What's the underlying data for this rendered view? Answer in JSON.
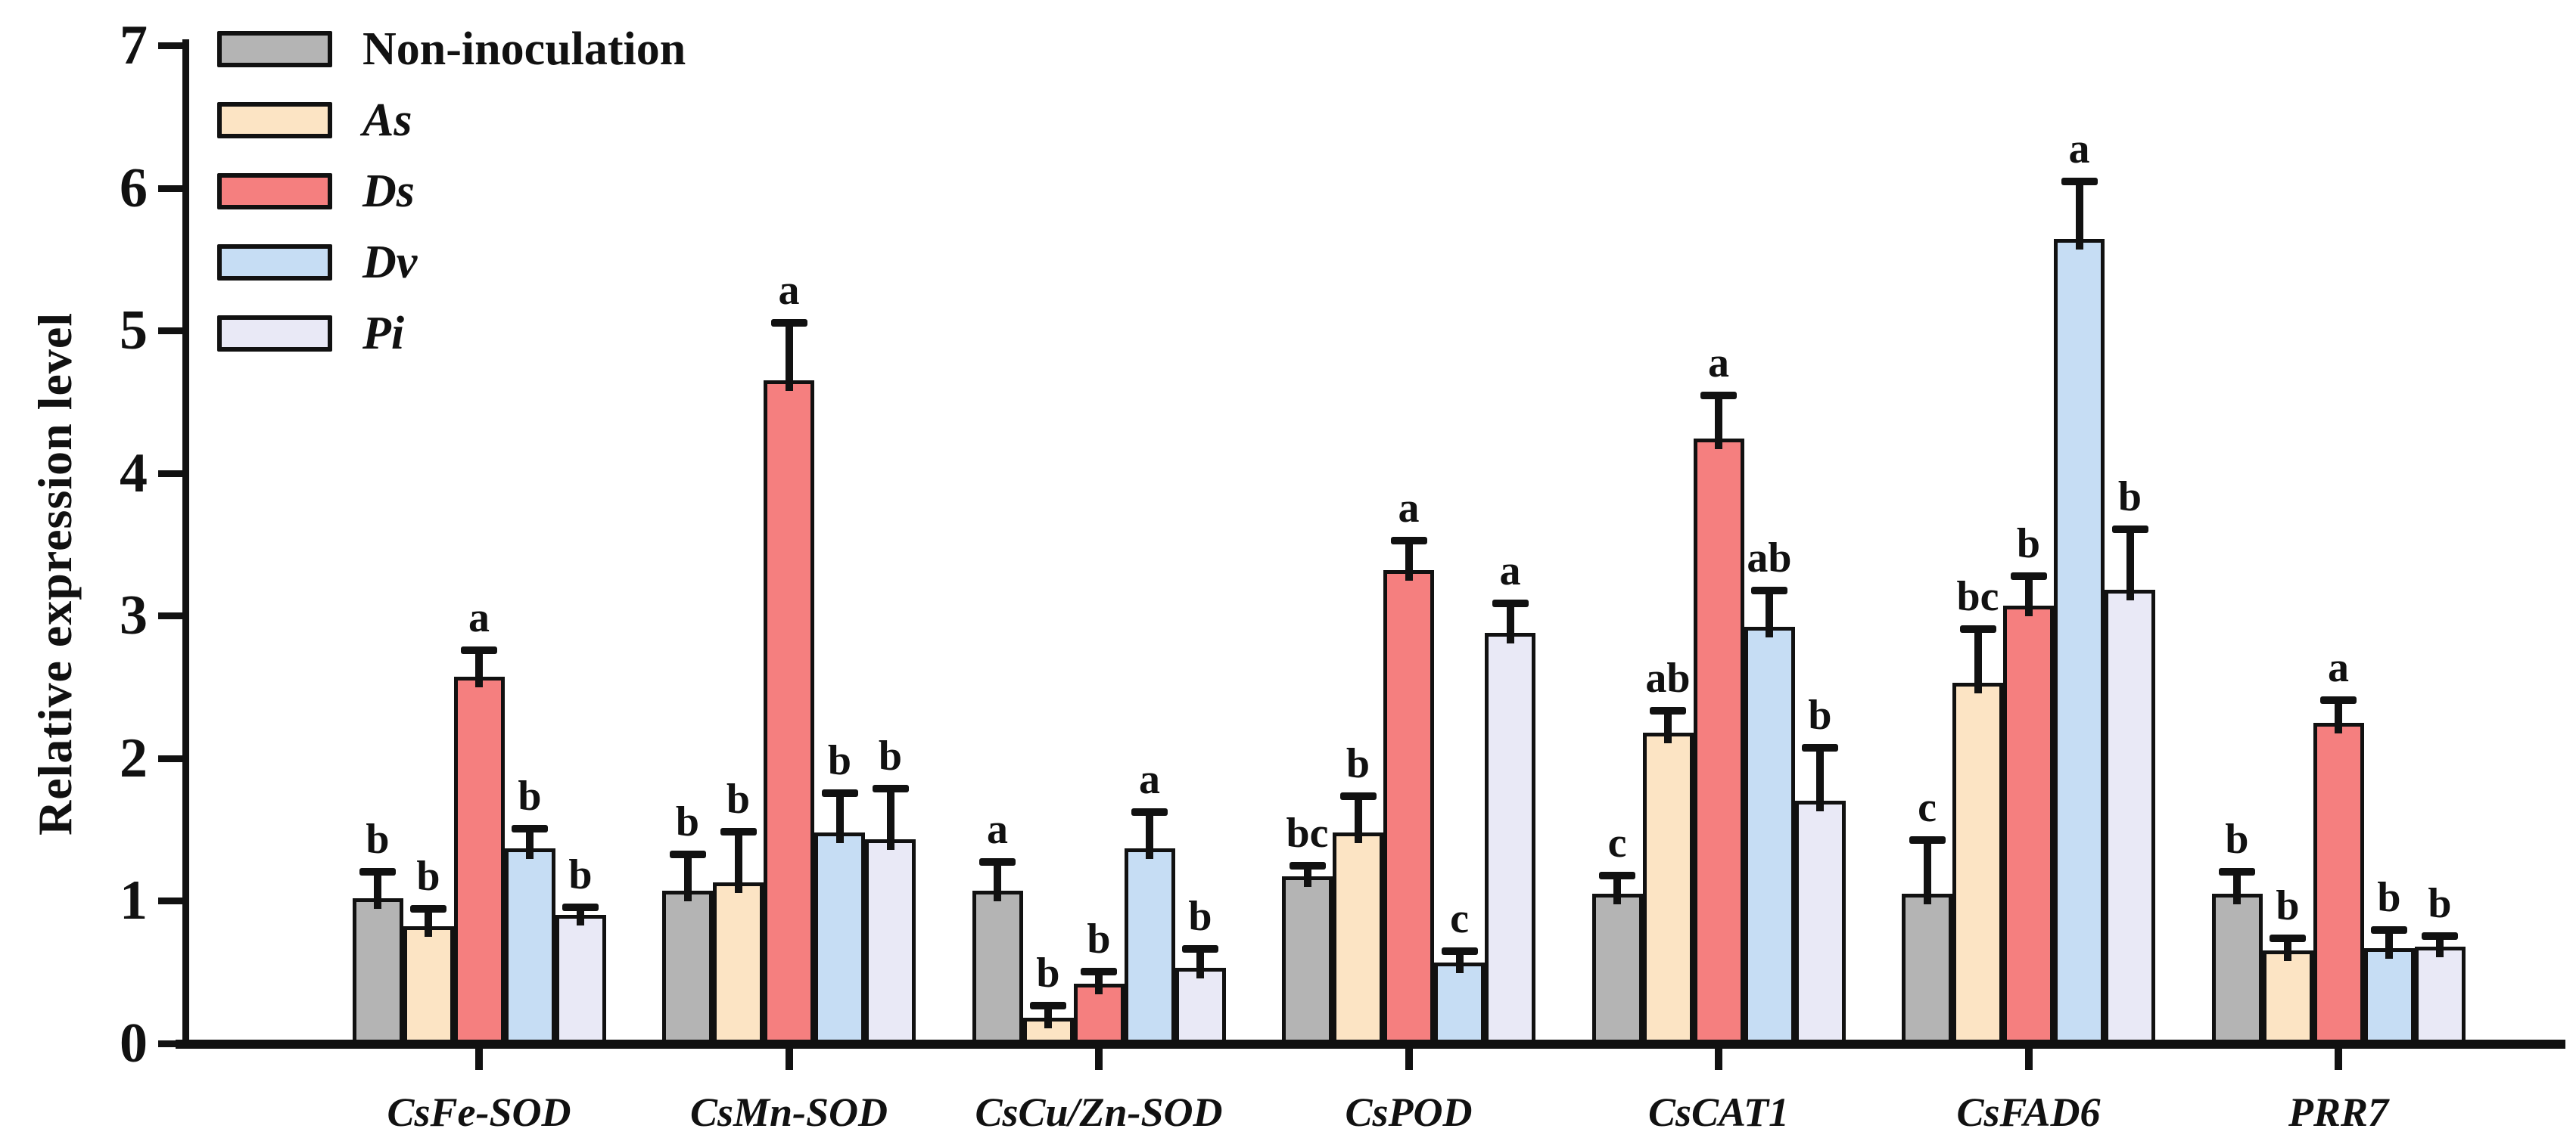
{
  "y_axis": {
    "label": "Relative expression level",
    "ticks": [
      "0",
      "1",
      "2",
      "3",
      "4",
      "5",
      "6",
      "7"
    ],
    "min": 0,
    "max": 7
  },
  "legend": {
    "position": "top-left",
    "items": [
      {
        "label": "Non-inoculation",
        "color": "#b4b4b4",
        "italic": false
      },
      {
        "label": "As",
        "color": "#fce4c4",
        "italic": true
      },
      {
        "label": "Ds",
        "color": "#f57f7f",
        "italic": true
      },
      {
        "label": "Dv",
        "color": "#c6ddf4",
        "italic": true
      },
      {
        "label": "Pi",
        "color": "#e9e9f6",
        "italic": true
      }
    ]
  },
  "colors": {
    "axis": "#111111",
    "bar_border": "#111111",
    "background": "#ffffff"
  },
  "chart_data": {
    "type": "bar",
    "title": "",
    "xlabel": "",
    "ylabel": "Relative expression level",
    "ylim": [
      0,
      7
    ],
    "grid": false,
    "legend_position": "top-left",
    "error_bars": "upper",
    "categories": [
      "CsFe-SOD",
      "CsMn-SOD",
      "CsCu/Zn-SOD",
      "CsPOD",
      "CsCAT1",
      "CsFAD6",
      "PRR7"
    ],
    "series": [
      {
        "name": "Non-inoculation",
        "color": "#b4b4b4",
        "values": [
          1.02,
          1.07,
          1.07,
          1.17,
          1.05,
          1.05,
          1.05
        ],
        "errors": [
          0.18,
          0.25,
          0.2,
          0.07,
          0.12,
          0.37,
          0.15
        ],
        "letters": [
          "b",
          "b",
          "a",
          "bc",
          "c",
          "c",
          "b"
        ]
      },
      {
        "name": "As",
        "color": "#fce4c4",
        "values": [
          0.82,
          1.13,
          0.18,
          1.48,
          2.18,
          2.53,
          0.65
        ],
        "errors": [
          0.12,
          0.35,
          0.08,
          0.25,
          0.15,
          0.37,
          0.08
        ],
        "letters": [
          "b",
          "b",
          "b",
          "b",
          "ab",
          "bc",
          "b"
        ]
      },
      {
        "name": "Ds",
        "color": "#f57f7f",
        "values": [
          2.57,
          4.65,
          0.42,
          3.32,
          4.24,
          3.07,
          2.25
        ],
        "errors": [
          0.18,
          0.4,
          0.08,
          0.2,
          0.3,
          0.2,
          0.15
        ],
        "letters": [
          "a",
          "a",
          "b",
          "a",
          "a",
          "b",
          "a"
        ]
      },
      {
        "name": "Dv",
        "color": "#c6ddf4",
        "values": [
          1.37,
          1.48,
          1.37,
          0.57,
          2.92,
          5.64,
          0.67
        ],
        "errors": [
          0.13,
          0.27,
          0.25,
          0.07,
          0.25,
          0.4,
          0.12
        ],
        "letters": [
          "b",
          "b",
          "a",
          "c",
          "ab",
          "a",
          "b"
        ]
      },
      {
        "name": "Pi",
        "color": "#e9e9f6",
        "values": [
          0.9,
          1.43,
          0.53,
          2.88,
          1.7,
          3.18,
          0.68
        ],
        "errors": [
          0.05,
          0.35,
          0.13,
          0.2,
          0.37,
          0.42,
          0.07
        ],
        "letters": [
          "b",
          "b",
          "b",
          "a",
          "b",
          "b",
          "b"
        ]
      }
    ]
  }
}
